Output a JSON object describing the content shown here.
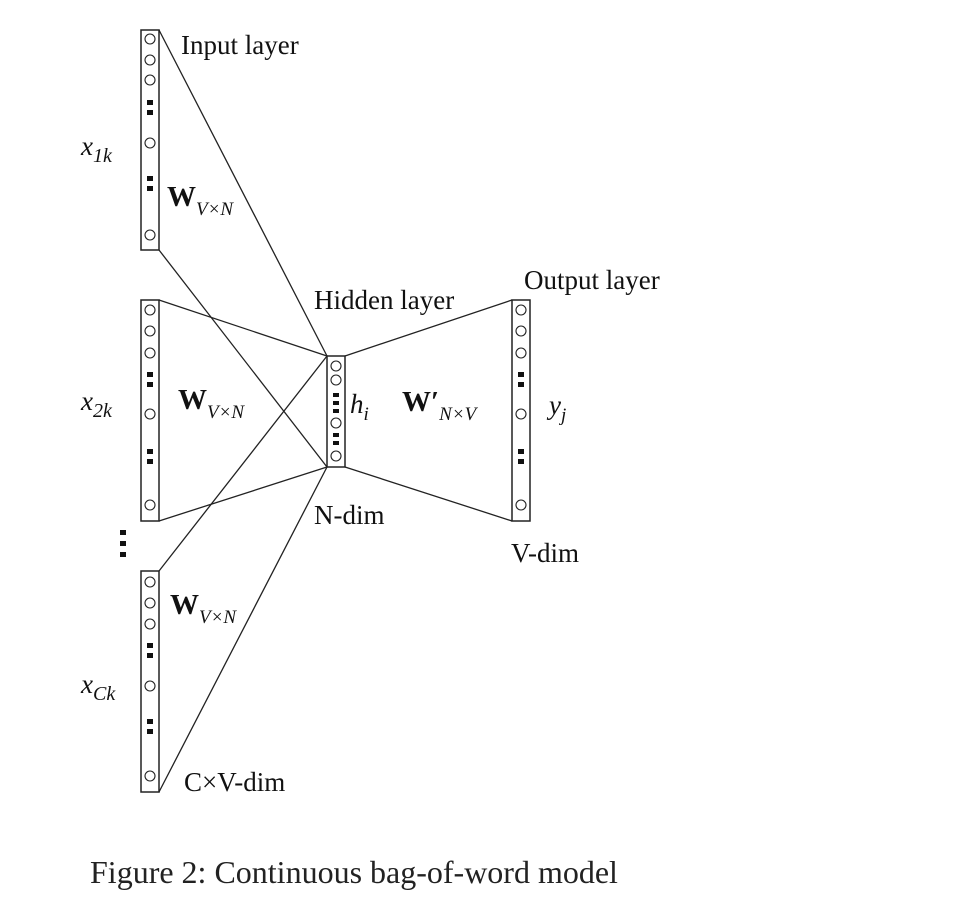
{
  "diagram": {
    "labels": {
      "input_layer": "Input layer",
      "hidden_layer": "Hidden layer",
      "output_layer": "Output layer",
      "n_dim": "N-dim",
      "v_dim": "V-dim",
      "cv_dim": "C×V-dim",
      "h": "h",
      "h_sub": "i",
      "y": "y",
      "y_sub": "j",
      "W": "W",
      "W_sub": "V×N",
      "W_prime": "W′",
      "W_prime_sub": "N×V",
      "x1": "x",
      "x1_sub": "1k",
      "x2": "x",
      "x2_sub": "2k",
      "xC": "x",
      "xC_sub": "Ck"
    }
  },
  "caption": "Figure 2: Continuous bag-of-word model"
}
